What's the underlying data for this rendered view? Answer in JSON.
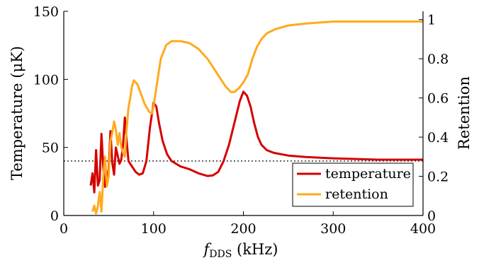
{
  "chart_data": {
    "type": "line",
    "title": "",
    "xlabel": "f",
    "xlabel_sub": "DDS",
    "xlabel_unit": " (kHz)",
    "ylabel_left": "Temperature (μK)",
    "ylabel_right": "Retention",
    "xlim": [
      0,
      400
    ],
    "ylim_left": [
      0,
      150
    ],
    "ylim_right": [
      0,
      1.0423
    ],
    "x_ticks": [
      0,
      100,
      200,
      300,
      400
    ],
    "y_left_ticks": [
      0,
      50,
      100,
      150
    ],
    "y_right_ticks": [
      0,
      0.2,
      0.4,
      0.6,
      0.8,
      1
    ],
    "grid": false,
    "legend_position": "bottom-right",
    "reference_line": {
      "axis": "left",
      "y": 40,
      "style": "dotted",
      "color": "#333333"
    },
    "series": [
      {
        "name": "temperature",
        "axis": "left",
        "color": "#d40000",
        "points": [
          [
            30,
            22
          ],
          [
            32,
            31
          ],
          [
            34,
            17
          ],
          [
            36,
            48
          ],
          [
            38,
            22
          ],
          [
            40,
            26
          ],
          [
            42,
            60
          ],
          [
            44,
            35
          ],
          [
            46,
            21
          ],
          [
            48,
            27
          ],
          [
            50,
            34
          ],
          [
            52,
            62
          ],
          [
            54,
            39
          ],
          [
            56,
            30
          ],
          [
            58,
            50
          ],
          [
            60,
            44
          ],
          [
            62,
            38
          ],
          [
            64,
            41
          ],
          [
            66,
            52
          ],
          [
            68,
            72
          ],
          [
            70,
            55
          ],
          [
            72,
            40
          ],
          [
            74,
            38
          ],
          [
            76,
            36
          ],
          [
            80,
            32
          ],
          [
            84,
            30
          ],
          [
            88,
            31
          ],
          [
            92,
            40
          ],
          [
            96,
            65
          ],
          [
            100,
            83
          ],
          [
            103,
            80
          ],
          [
            106,
            68
          ],
          [
            110,
            55
          ],
          [
            115,
            45
          ],
          [
            120,
            40
          ],
          [
            130,
            36
          ],
          [
            140,
            34
          ],
          [
            150,
            31
          ],
          [
            160,
            29
          ],
          [
            166,
            29.5
          ],
          [
            172,
            32
          ],
          [
            178,
            40
          ],
          [
            184,
            52
          ],
          [
            190,
            68
          ],
          [
            196,
            84
          ],
          [
            200,
            91
          ],
          [
            204,
            88
          ],
          [
            208,
            80
          ],
          [
            212,
            68
          ],
          [
            216,
            58
          ],
          [
            220,
            52
          ],
          [
            226,
            48
          ],
          [
            234,
            46
          ],
          [
            250,
            44
          ],
          [
            270,
            43
          ],
          [
            300,
            42
          ],
          [
            350,
            41
          ],
          [
            400,
            41
          ]
        ]
      },
      {
        "name": "retention",
        "axis": "right",
        "color": "#ffaa1d",
        "points": [
          [
            32,
            0.02
          ],
          [
            34,
            0.05
          ],
          [
            36,
            0.01
          ],
          [
            38,
            0.05
          ],
          [
            40,
            0.12
          ],
          [
            42,
            0.02
          ],
          [
            44,
            0.2
          ],
          [
            46,
            0.3
          ],
          [
            48,
            0.15
          ],
          [
            50,
            0.2
          ],
          [
            52,
            0.38
          ],
          [
            54,
            0.42
          ],
          [
            56,
            0.48
          ],
          [
            58,
            0.44
          ],
          [
            60,
            0.36
          ],
          [
            62,
            0.42
          ],
          [
            64,
            0.35
          ],
          [
            66,
            0.32
          ],
          [
            68,
            0.3
          ],
          [
            70,
            0.44
          ],
          [
            72,
            0.55
          ],
          [
            74,
            0.6
          ],
          [
            76,
            0.66
          ],
          [
            78,
            0.69
          ],
          [
            82,
            0.67
          ],
          [
            86,
            0.62
          ],
          [
            90,
            0.57
          ],
          [
            95,
            0.53
          ],
          [
            98,
            0.52
          ],
          [
            100,
            0.56
          ],
          [
            104,
            0.68
          ],
          [
            108,
            0.8
          ],
          [
            114,
            0.87
          ],
          [
            120,
            0.89
          ],
          [
            130,
            0.89
          ],
          [
            140,
            0.88
          ],
          [
            150,
            0.85
          ],
          [
            160,
            0.8
          ],
          [
            170,
            0.73
          ],
          [
            180,
            0.66
          ],
          [
            186,
            0.63
          ],
          [
            190,
            0.63
          ],
          [
            195,
            0.65
          ],
          [
            200,
            0.68
          ],
          [
            205,
            0.72
          ],
          [
            210,
            0.8
          ],
          [
            215,
            0.86
          ],
          [
            220,
            0.9
          ],
          [
            226,
            0.93
          ],
          [
            235,
            0.95
          ],
          [
            250,
            0.97
          ],
          [
            270,
            0.98
          ],
          [
            300,
            0.99
          ],
          [
            350,
            0.99
          ],
          [
            400,
            0.99
          ]
        ]
      }
    ]
  }
}
